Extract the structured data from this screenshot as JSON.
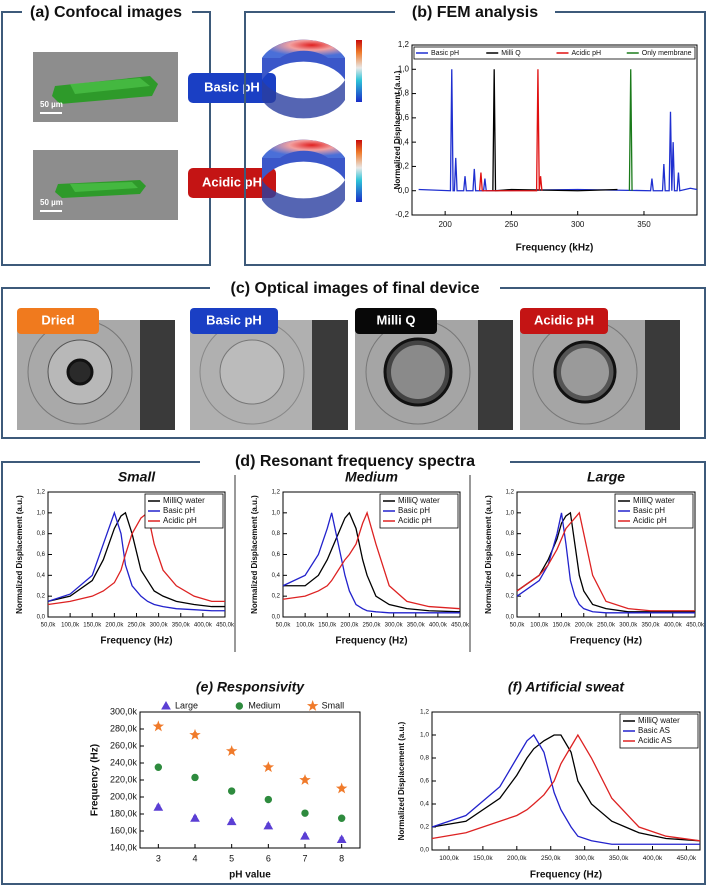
{
  "panels": {
    "a": {
      "title": "(a) Confocal images",
      "scale_bars": [
        "50 µm",
        "50 µm"
      ],
      "badges": [
        "Basic pH",
        "Acidic pH"
      ]
    },
    "b": {
      "title": "(b) FEM analysis"
    },
    "c": {
      "title": "(c) Optical images of final device",
      "labels": [
        "Dried",
        "Basic pH",
        "Milli Q",
        "Acidic pH"
      ]
    },
    "d": {
      "title": "(d) Resonant frequency spectra"
    }
  },
  "chart_data": [
    {
      "type": "line",
      "x_label": "Frequency (kHz)",
      "y_label": "Normalized Displacement (a.u.)",
      "legend": "upper center",
      "xlim": [
        175,
        390
      ],
      "xticks": [
        200,
        250,
        300,
        350
      ],
      "ylim": [
        -0.2,
        1.2
      ],
      "yticks": [
        {
          "value": -0.2,
          "label": "-0,2"
        },
        {
          "value": 0,
          "label": "0,0"
        },
        {
          "value": 0.2,
          "label": "0,2"
        },
        {
          "value": 0.4,
          "label": "0,4"
        },
        {
          "value": 0.6,
          "label": "0,6"
        },
        {
          "value": 0.8,
          "label": "0,8"
        },
        {
          "value": 1.0,
          "label": "1,0"
        },
        {
          "value": 1.2,
          "label": "1,2"
        }
      ],
      "series": [
        {
          "name": "Basic pH",
          "color": "#1f2fd0",
          "x": [
            180,
            204,
            205,
            206,
            207,
            208,
            209,
            214,
            215,
            216,
            221,
            222,
            223,
            229,
            230,
            231,
            300,
            355,
            356,
            357,
            364,
            365,
            366,
            369,
            370,
            371,
            372,
            373,
            375,
            376,
            377,
            385,
            390
          ],
          "values": [
            0.01,
            0,
            1.0,
            0,
            0,
            0.27,
            0,
            0,
            0.12,
            0,
            0,
            0.18,
            0,
            0,
            0.1,
            0,
            0.01,
            0,
            0.1,
            0,
            0,
            0.22,
            0,
            0,
            0.65,
            0,
            0.4,
            0,
            0,
            0.15,
            0,
            0.02,
            0.01
          ]
        },
        {
          "name": "Milli Q",
          "color": "#000000",
          "x": [
            236,
            237,
            238,
            250,
            300,
            330
          ],
          "values": [
            0,
            1.0,
            0,
            0.01,
            0,
            0.01
          ]
        },
        {
          "name": "Acidic pH",
          "color": "#e01010",
          "x": [
            226,
            227,
            228,
            268,
            269,
            270,
            271,
            272,
            273
          ],
          "values": [
            0,
            0.15,
            0,
            0,
            0,
            1.0,
            0,
            0.12,
            0
          ]
        },
        {
          "name": "Only membrane",
          "color": "#1a7a1a",
          "x": [
            339,
            340,
            341
          ],
          "values": [
            0,
            1.0,
            0
          ]
        }
      ]
    },
    {
      "type": "line",
      "title": "Small",
      "x_label": "Frequency (Hz)",
      "y_label": "Normalized Displacement (a.u.)",
      "legend": "upper right",
      "xlim": [
        50000,
        450000
      ],
      "xticks": [
        {
          "value": 50000,
          "label": "50,0k"
        },
        {
          "value": 100000,
          "label": "100,0k"
        },
        {
          "value": 150000,
          "label": "150,0k"
        },
        {
          "value": 200000,
          "label": "200,0k"
        },
        {
          "value": 250000,
          "label": "250,0k"
        },
        {
          "value": 300000,
          "label": "300,0k"
        },
        {
          "value": 350000,
          "label": "350,0k"
        },
        {
          "value": 400000,
          "label": "400,0k"
        },
        {
          "value": 450000,
          "label": "450,0k"
        }
      ],
      "ylim": [
        0,
        1.2
      ],
      "yticks": [
        {
          "value": 0,
          "label": "0,0"
        },
        {
          "value": 0.2,
          "label": "0,2"
        },
        {
          "value": 0.4,
          "label": "0,4"
        },
        {
          "value": 0.6,
          "label": "0,6"
        },
        {
          "value": 0.8,
          "label": "0,8"
        },
        {
          "value": 1.0,
          "label": "1,0"
        },
        {
          "value": 1.2,
          "label": "1,2"
        }
      ],
      "x": [
        50000,
        100000,
        150000,
        175000,
        200000,
        215000,
        225000,
        240000,
        260000,
        275000,
        290000,
        310000,
        340000,
        380000,
        420000,
        450000
      ],
      "series": [
        {
          "name": "MilliQ water",
          "color": "#000000",
          "values": [
            0.15,
            0.2,
            0.35,
            0.55,
            0.85,
            0.97,
            1.0,
            0.8,
            0.45,
            0.35,
            0.25,
            0.2,
            0.15,
            0.12,
            0.1,
            0.1
          ]
        },
        {
          "name": "Basic pH",
          "color": "#2222cc",
          "values": [
            0.15,
            0.22,
            0.4,
            0.7,
            1.0,
            0.8,
            0.5,
            0.3,
            0.2,
            0.15,
            0.12,
            0.1,
            0.08,
            0.07,
            0.06,
            0.06
          ]
        },
        {
          "name": "Acidic pH",
          "color": "#dd2222",
          "values": [
            0.12,
            0.15,
            0.2,
            0.25,
            0.33,
            0.45,
            0.6,
            0.8,
            0.95,
            1.0,
            0.7,
            0.45,
            0.3,
            0.2,
            0.15,
            0.15
          ]
        }
      ]
    },
    {
      "type": "line",
      "title": "Medium",
      "x_label": "Frequency (Hz)",
      "y_label": "Normalized Displacement (a.u.)",
      "legend": "upper right",
      "xlim": [
        50000,
        450000
      ],
      "xticks": [
        {
          "value": 50000,
          "label": "50,0k"
        },
        {
          "value": 100000,
          "label": "100,0k"
        },
        {
          "value": 150000,
          "label": "150,0k"
        },
        {
          "value": 200000,
          "label": "200,0k"
        },
        {
          "value": 250000,
          "label": "250,0k"
        },
        {
          "value": 300000,
          "label": "300,0k"
        },
        {
          "value": 350000,
          "label": "350,0k"
        },
        {
          "value": 400000,
          "label": "400,0k"
        },
        {
          "value": 450000,
          "label": "450,0k"
        }
      ],
      "ylim": [
        0,
        1.2
      ],
      "yticks": [
        {
          "value": 0,
          "label": "0,0"
        },
        {
          "value": 0.2,
          "label": "0,2"
        },
        {
          "value": 0.4,
          "label": "0,4"
        },
        {
          "value": 0.6,
          "label": "0,6"
        },
        {
          "value": 0.8,
          "label": "0,8"
        },
        {
          "value": 1.0,
          "label": "1,0"
        },
        {
          "value": 1.2,
          "label": "1,2"
        }
      ],
      "x": [
        50000,
        100000,
        130000,
        150000,
        160000,
        175000,
        190000,
        200000,
        215000,
        230000,
        240000,
        260000,
        290000,
        330000,
        380000,
        450000
      ],
      "series": [
        {
          "name": "MilliQ water",
          "color": "#000000",
          "values": [
            0.3,
            0.3,
            0.4,
            0.55,
            0.65,
            0.8,
            0.95,
            1.0,
            0.85,
            0.55,
            0.4,
            0.2,
            0.12,
            0.08,
            0.06,
            0.05
          ]
        },
        {
          "name": "Basic pH",
          "color": "#2222cc",
          "values": [
            0.3,
            0.4,
            0.6,
            0.85,
            1.0,
            0.7,
            0.4,
            0.25,
            0.12,
            0.08,
            0.06,
            0.05,
            0.04,
            0.04,
            0.04,
            0.04
          ]
        },
        {
          "name": "Acidic pH",
          "color": "#dd2222",
          "values": [
            0.17,
            0.2,
            0.25,
            0.3,
            0.35,
            0.45,
            0.55,
            0.6,
            0.7,
            0.9,
            1.0,
            0.7,
            0.3,
            0.15,
            0.1,
            0.08
          ]
        }
      ]
    },
    {
      "type": "line",
      "title": "Large",
      "x_label": "Frequency (Hz)",
      "y_label": "Normalized Displacement (a.u.)",
      "legend": "upper right",
      "xlim": [
        50000,
        450000
      ],
      "xticks": [
        {
          "value": 50000,
          "label": "50,0k"
        },
        {
          "value": 100000,
          "label": "100,0k"
        },
        {
          "value": 150000,
          "label": "150,0k"
        },
        {
          "value": 200000,
          "label": "200,0k"
        },
        {
          "value": 250000,
          "label": "250,0k"
        },
        {
          "value": 300000,
          "label": "300,0k"
        },
        {
          "value": 350000,
          "label": "350,0k"
        },
        {
          "value": 400000,
          "label": "400,0k"
        },
        {
          "value": 450000,
          "label": "450,0k"
        }
      ],
      "ylim": [
        0,
        1.2
      ],
      "yticks": [
        {
          "value": 0,
          "label": "0,0"
        },
        {
          "value": 0.2,
          "label": "0,2"
        },
        {
          "value": 0.4,
          "label": "0,4"
        },
        {
          "value": 0.6,
          "label": "0,6"
        },
        {
          "value": 0.8,
          "label": "0,8"
        },
        {
          "value": 1.0,
          "label": "1,0"
        },
        {
          "value": 1.2,
          "label": "1,2"
        }
      ],
      "x": [
        50000,
        100000,
        120000,
        140000,
        150000,
        160000,
        170000,
        180000,
        190000,
        200000,
        220000,
        250000,
        300000,
        350000,
        400000,
        450000
      ],
      "series": [
        {
          "name": "MilliQ water",
          "color": "#000000",
          "values": [
            0.25,
            0.4,
            0.55,
            0.75,
            0.9,
            0.97,
            1.0,
            0.7,
            0.4,
            0.25,
            0.12,
            0.08,
            0.05,
            0.05,
            0.05,
            0.05
          ]
        },
        {
          "name": "Basic pH",
          "color": "#2222cc",
          "values": [
            0.2,
            0.35,
            0.5,
            0.8,
            1.0,
            0.7,
            0.35,
            0.2,
            0.12,
            0.08,
            0.05,
            0.04,
            0.04,
            0.04,
            0.04,
            0.04
          ]
        },
        {
          "name": "Acidic pH",
          "color": "#dd2222",
          "values": [
            0.25,
            0.4,
            0.5,
            0.65,
            0.75,
            0.85,
            0.9,
            0.95,
            1.0,
            0.8,
            0.4,
            0.15,
            0.08,
            0.06,
            0.06,
            0.06
          ]
        }
      ]
    },
    {
      "type": "scatter",
      "title": "(e) Responsivity",
      "x_label": "pH value",
      "y_label": "Frequency (Hz)",
      "legend": "top",
      "xlim": [
        2.5,
        8.5
      ],
      "xticks": [
        3,
        4,
        5,
        6,
        7,
        8
      ],
      "ylim": [
        140000,
        300000
      ],
      "yticks": [
        {
          "value": 140000,
          "label": "140,0k"
        },
        {
          "value": 160000,
          "label": "160,0k"
        },
        {
          "value": 180000,
          "label": "180,0k"
        },
        {
          "value": 200000,
          "label": "200,0k"
        },
        {
          "value": 220000,
          "label": "220,0k"
        },
        {
          "value": 240000,
          "label": "240,0k"
        },
        {
          "value": 260000,
          "label": "260,0k"
        },
        {
          "value": 280000,
          "label": "280,0k"
        },
        {
          "value": 300000,
          "label": "300,0k"
        }
      ],
      "x": [
        3,
        4,
        5,
        6,
        7,
        8
      ],
      "series": [
        {
          "name": "Large",
          "color": "#5b3fd4",
          "marker": "triangle",
          "values": [
            188000,
            175000,
            171000,
            166000,
            154000,
            150000
          ],
          "errors": [
            2500,
            2500,
            2500,
            2500,
            2500,
            2500
          ]
        },
        {
          "name": "Medium",
          "color": "#2e8b3e",
          "marker": "circle",
          "values": [
            235000,
            223000,
            207000,
            197000,
            181000,
            175000
          ],
          "errors": [
            2500,
            2500,
            2500,
            2500,
            2500,
            2500
          ]
        },
        {
          "name": "Small",
          "color": "#f07a2a",
          "marker": "star",
          "values": [
            283000,
            273000,
            254000,
            235000,
            220000,
            210000
          ],
          "errors": [
            2500,
            2500,
            2500,
            2500,
            2500,
            2500
          ]
        }
      ]
    },
    {
      "type": "line",
      "title": "(f) Artificial sweat",
      "x_label": "Frequency (Hz)",
      "y_label": "Normalized Displacement (a.u.)",
      "legend": "upper right",
      "xlim": [
        75000,
        470000
      ],
      "xticks": [
        {
          "value": 100000,
          "label": "100,0k"
        },
        {
          "value": 150000,
          "label": "150,0k"
        },
        {
          "value": 200000,
          "label": "200,0k"
        },
        {
          "value": 250000,
          "label": "250,0k"
        },
        {
          "value": 300000,
          "label": "300,0k"
        },
        {
          "value": 350000,
          "label": "350,0k"
        },
        {
          "value": 400000,
          "label": "400,0k"
        },
        {
          "value": 450000,
          "label": "450,0k"
        }
      ],
      "ylim": [
        0,
        1.2
      ],
      "yticks": [
        {
          "value": 0,
          "label": "0,0"
        },
        {
          "value": 0.2,
          "label": "0,2"
        },
        {
          "value": 0.4,
          "label": "0,4"
        },
        {
          "value": 0.6,
          "label": "0,6"
        },
        {
          "value": 0.8,
          "label": "0,8"
        },
        {
          "value": 1.0,
          "label": "1,0"
        },
        {
          "value": 1.2,
          "label": "1,2"
        }
      ],
      "x": [
        75000,
        125000,
        175000,
        200000,
        215000,
        225000,
        240000,
        255000,
        265000,
        280000,
        290000,
        310000,
        340000,
        380000,
        420000,
        470000
      ],
      "series": [
        {
          "name": "MilliQ water",
          "color": "#000000",
          "values": [
            0.2,
            0.25,
            0.45,
            0.65,
            0.8,
            0.88,
            0.95,
            1.0,
            1.0,
            0.85,
            0.6,
            0.4,
            0.25,
            0.15,
            0.1,
            0.08
          ]
        },
        {
          "name": "Basic AS",
          "color": "#2222cc",
          "values": [
            0.2,
            0.3,
            0.55,
            0.8,
            0.95,
            1.0,
            0.85,
            0.5,
            0.35,
            0.2,
            0.12,
            0.08,
            0.05,
            0.05,
            0.05,
            0.05
          ]
        },
        {
          "name": "Acidic AS",
          "color": "#dd2222",
          "values": [
            0.1,
            0.15,
            0.25,
            0.3,
            0.35,
            0.4,
            0.48,
            0.6,
            0.75,
            0.9,
            1.0,
            0.8,
            0.45,
            0.2,
            0.12,
            0.08
          ]
        }
      ]
    }
  ]
}
